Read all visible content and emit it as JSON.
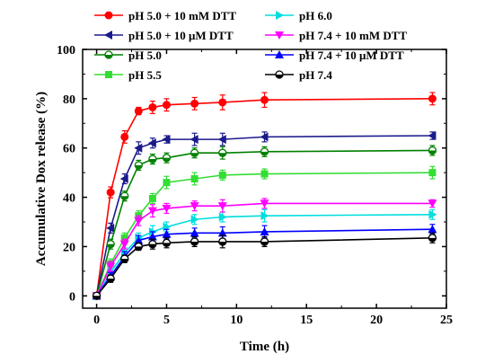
{
  "chart_data": {
    "type": "line",
    "title": "",
    "xlabel": "Time (h)",
    "ylabel": "Accumulative Dox release (%)",
    "xlim": [
      -1,
      25
    ],
    "ylim": [
      -5,
      100
    ],
    "xticks": [
      0,
      5,
      10,
      15,
      20,
      25
    ],
    "yticks": [
      0,
      20,
      40,
      60,
      80,
      100
    ],
    "x": [
      0,
      1,
      2,
      3,
      4,
      5,
      7,
      9,
      12,
      24
    ],
    "grid": false,
    "legend_position": "top",
    "series": [
      {
        "name": "pH 5.0 + 10 mM DTT",
        "color": "#ff0000",
        "marker": "circle",
        "values": [
          0,
          42,
          64.5,
          75,
          76.5,
          77.5,
          78,
          78.5,
          79.5,
          80
        ],
        "errors": [
          0,
          2.2,
          2.5,
          1.5,
          2.5,
          2.5,
          2.5,
          3,
          3,
          2.5
        ]
      },
      {
        "name": "pH 5.0 + 10 μM DTT",
        "color": "#1a1a8c",
        "marker": "triangle-left",
        "values": [
          0,
          27.5,
          47.5,
          60,
          62,
          63.5,
          63.5,
          63.5,
          64.5,
          65
        ],
        "errors": [
          0,
          2,
          2,
          2.5,
          2,
          1.5,
          2.5,
          2.5,
          2,
          1.5
        ]
      },
      {
        "name": "pH 5.0",
        "color": "#008000",
        "marker": "circle-half",
        "values": [
          0,
          21,
          40.5,
          53,
          55.5,
          56,
          58,
          58,
          58.5,
          59
        ],
        "errors": [
          0,
          2,
          2,
          2,
          2,
          2,
          2,
          2.5,
          2,
          2
        ]
      },
      {
        "name": "pH 5.5",
        "color": "#33dd33",
        "marker": "square",
        "values": [
          0,
          13,
          23.5,
          32.5,
          39.5,
          46,
          47.5,
          49,
          49.5,
          50
        ],
        "errors": [
          0,
          2,
          2,
          2,
          2,
          2.5,
          2.5,
          2,
          2,
          2.5
        ]
      },
      {
        "name": "pH 6.0",
        "color": "#00dddd",
        "marker": "triangle-right",
        "values": [
          0,
          9.5,
          17.5,
          23.5,
          26,
          28,
          31,
          32,
          32.5,
          33
        ],
        "errors": [
          0,
          1.5,
          2,
          2,
          2.5,
          2,
          2,
          2,
          2.5,
          2
        ]
      },
      {
        "name": "pH 7.4 + 10 mM DTT",
        "color": "#ff00ff",
        "marker": "triangle-down",
        "values": [
          0,
          12,
          21,
          30.5,
          34.5,
          35.5,
          36.5,
          36.5,
          37.5,
          37.5
        ],
        "errors": [
          0,
          2,
          2,
          2,
          2.5,
          2,
          2,
          2.5,
          2,
          1.5
        ]
      },
      {
        "name": "pH 7.4 + 10 μM DTT",
        "color": "#0000ff",
        "marker": "triangle-up",
        "values": [
          0,
          8,
          16,
          22.5,
          24,
          25,
          25.5,
          25.5,
          26,
          27
        ],
        "errors": [
          0,
          1.5,
          2,
          2,
          2,
          2,
          2,
          2.5,
          2.5,
          2
        ]
      },
      {
        "name": "pH 7.4",
        "color": "#000000",
        "marker": "circle-half",
        "values": [
          0,
          7,
          15,
          20,
          21,
          21.5,
          22,
          22,
          22,
          23.5
        ],
        "errors": [
          0,
          1.5,
          1.5,
          1.5,
          2,
          2,
          2,
          2.5,
          2,
          2
        ]
      }
    ]
  }
}
